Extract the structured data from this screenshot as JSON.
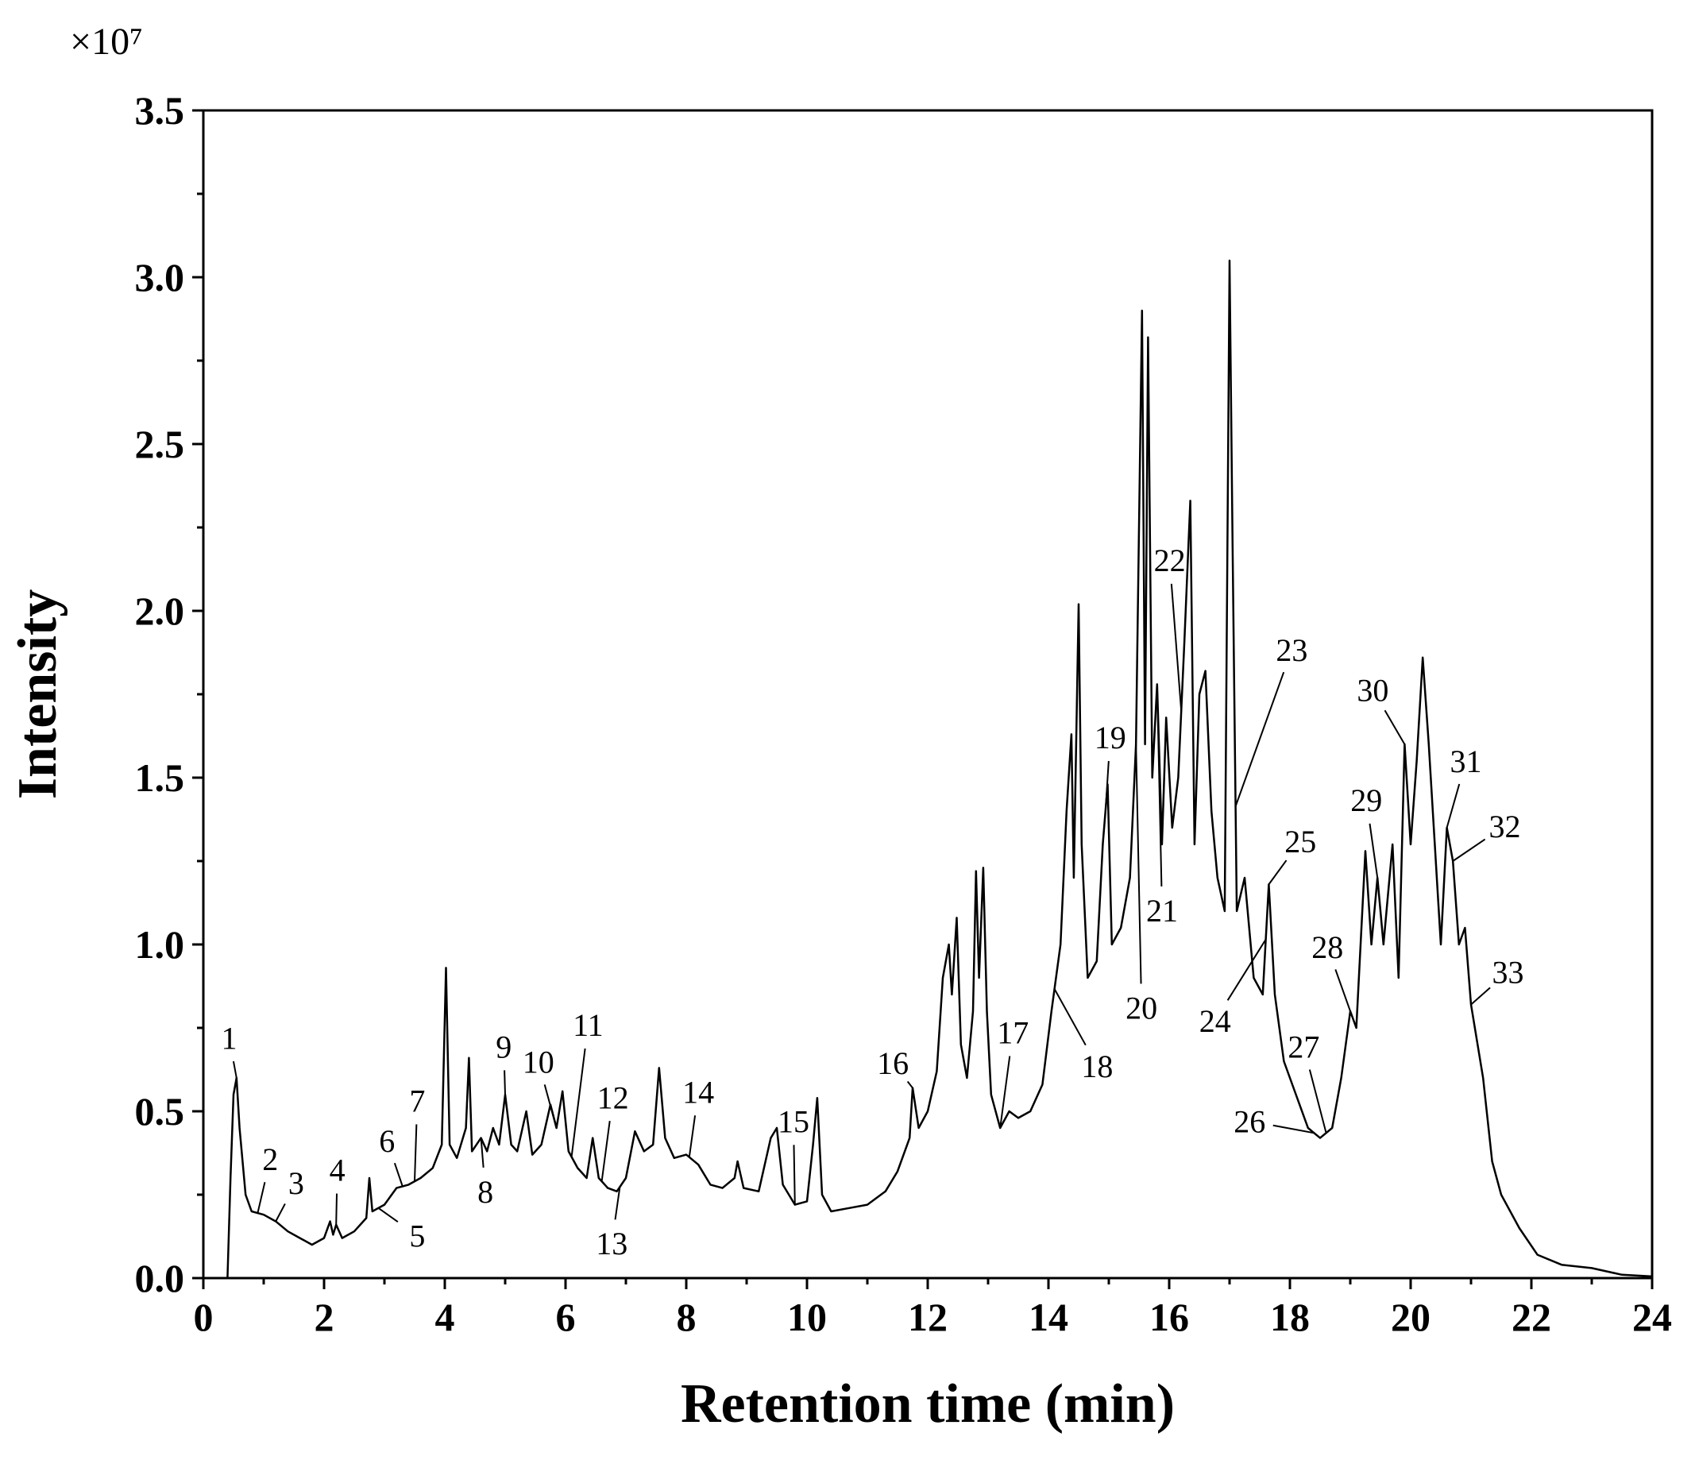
{
  "chart_data": {
    "type": "line",
    "x_label": "Retention time (min)",
    "y_label": "Intensity",
    "y_multiplier": "×10⁷",
    "color": "#000000",
    "xlim": [
      0,
      24
    ],
    "xticks": [
      0,
      2,
      4,
      6,
      8,
      10,
      12,
      14,
      16,
      18,
      20,
      22,
      24
    ],
    "xminor_ticks": [
      1,
      3,
      5,
      7,
      9,
      11,
      13,
      15,
      17,
      19,
      21,
      23
    ],
    "ylim": [
      0,
      3.5
    ],
    "yticks": [
      {
        "value": 0,
        "label": "0.0"
      },
      0.5,
      {
        "value": 1,
        "label": "1.0"
      },
      1.5,
      {
        "value": 2,
        "label": "2.0"
      },
      2.5,
      {
        "value": 3,
        "label": "3.0"
      },
      3.5
    ],
    "yminor_ticks": [
      0.25,
      0.75,
      1.25,
      1.75,
      2.25,
      2.75,
      3.25
    ],
    "x": [
      0,
      0.4,
      0.45,
      0.5,
      0.55,
      0.6,
      0.7,
      0.8,
      1.0,
      1.2,
      1.4,
      1.6,
      1.8,
      2.0,
      2.1,
      2.15,
      2.2,
      2.3,
      2.5,
      2.7,
      2.75,
      2.8,
      3.0,
      3.2,
      3.4,
      3.6,
      3.8,
      3.95,
      4.02,
      4.08,
      4.2,
      4.35,
      4.4,
      4.45,
      4.6,
      4.7,
      4.8,
      4.9,
      5.0,
      5.1,
      5.2,
      5.35,
      5.45,
      5.6,
      5.75,
      5.85,
      5.95,
      6.05,
      6.2,
      6.35,
      6.45,
      6.55,
      6.7,
      6.85,
      7.0,
      7.15,
      7.3,
      7.45,
      7.55,
      7.65,
      7.8,
      8.0,
      8.2,
      8.4,
      8.6,
      8.8,
      8.85,
      8.95,
      9.2,
      9.4,
      9.5,
      9.6,
      9.8,
      10.0,
      10.1,
      10.17,
      10.25,
      10.4,
      10.7,
      11.0,
      11.3,
      11.5,
      11.7,
      11.75,
      11.85,
      12.0,
      12.15,
      12.25,
      12.35,
      12.4,
      12.48,
      12.55,
      12.65,
      12.75,
      12.8,
      12.85,
      12.92,
      12.98,
      13.05,
      13.2,
      13.35,
      13.5,
      13.7,
      13.9,
      14.05,
      14.2,
      14.3,
      14.38,
      14.42,
      14.5,
      14.55,
      14.65,
      14.8,
      14.9,
      14.98,
      15.05,
      15.2,
      15.35,
      15.45,
      15.55,
      15.6,
      15.65,
      15.72,
      15.8,
      15.88,
      15.95,
      16.05,
      16.15,
      16.25,
      16.35,
      16.42,
      16.5,
      16.6,
      16.7,
      16.8,
      16.92,
      17.0,
      17.05,
      17.12,
      17.25,
      17.4,
      17.55,
      17.65,
      17.75,
      17.9,
      18.1,
      18.3,
      18.5,
      18.7,
      18.85,
      19.0,
      19.1,
      19.25,
      19.35,
      19.45,
      19.55,
      19.7,
      19.8,
      19.9,
      20.0,
      20.1,
      20.2,
      20.3,
      20.4,
      20.5,
      20.6,
      20.7,
      20.8,
      20.9,
      21.0,
      21.2,
      21.35,
      21.5,
      21.8,
      22.1,
      22.5,
      23.0,
      23.5,
      24.0
    ],
    "values": [
      0,
      0,
      0.3,
      0.55,
      0.6,
      0.45,
      0.25,
      0.2,
      0.19,
      0.17,
      0.14,
      0.12,
      0.1,
      0.12,
      0.17,
      0.13,
      0.16,
      0.12,
      0.14,
      0.18,
      0.3,
      0.2,
      0.22,
      0.27,
      0.28,
      0.3,
      0.33,
      0.4,
      0.93,
      0.4,
      0.36,
      0.45,
      0.66,
      0.38,
      0.42,
      0.38,
      0.45,
      0.4,
      0.55,
      0.4,
      0.38,
      0.5,
      0.37,
      0.4,
      0.52,
      0.45,
      0.56,
      0.38,
      0.33,
      0.3,
      0.42,
      0.3,
      0.27,
      0.26,
      0.3,
      0.44,
      0.38,
      0.4,
      0.63,
      0.42,
      0.36,
      0.37,
      0.34,
      0.28,
      0.27,
      0.3,
      0.35,
      0.27,
      0.26,
      0.42,
      0.45,
      0.28,
      0.22,
      0.23,
      0.4,
      0.54,
      0.25,
      0.2,
      0.21,
      0.22,
      0.26,
      0.32,
      0.42,
      0.57,
      0.45,
      0.5,
      0.62,
      0.9,
      1.0,
      0.85,
      1.08,
      0.7,
      0.6,
      0.8,
      1.22,
      0.9,
      1.23,
      0.8,
      0.55,
      0.45,
      0.5,
      0.48,
      0.5,
      0.58,
      0.8,
      1.0,
      1.4,
      1.63,
      1.2,
      2.02,
      1.3,
      0.9,
      0.95,
      1.3,
      1.48,
      1.0,
      1.05,
      1.2,
      1.6,
      2.9,
      1.6,
      2.82,
      1.5,
      1.78,
      1.3,
      1.68,
      1.35,
      1.5,
      1.9,
      2.33,
      1.3,
      1.75,
      1.82,
      1.4,
      1.2,
      1.1,
      3.05,
      2.2,
      1.1,
      1.2,
      0.9,
      0.85,
      1.18,
      0.85,
      0.65,
      0.55,
      0.45,
      0.42,
      0.45,
      0.6,
      0.8,
      0.75,
      1.28,
      1.0,
      1.2,
      1.0,
      1.3,
      0.9,
      1.6,
      1.3,
      1.55,
      1.86,
      1.6,
      1.3,
      1.0,
      1.35,
      1.25,
      1.0,
      1.05,
      0.82,
      0.6,
      0.35,
      0.25,
      0.15,
      0.07,
      0.04,
      0.03,
      0.01,
      0.005
    ],
    "peaks": [
      {
        "label": "1",
        "x": 0.55
      },
      {
        "label": "2",
        "x": 0.9
      },
      {
        "label": "3",
        "x": 1.2
      },
      {
        "label": "4",
        "x": 2.2
      },
      {
        "label": "5",
        "x": 2.9
      },
      {
        "label": "6",
        "x": 3.3
      },
      {
        "label": "7",
        "x": 3.5
      },
      {
        "label": "8",
        "x": 4.6
      },
      {
        "label": "9",
        "x": 5.0
      },
      {
        "label": "10",
        "x": 5.85
      },
      {
        "label": "11",
        "x": 6.1
      },
      {
        "label": "12",
        "x": 6.6
      },
      {
        "label": "13",
        "x": 6.9
      },
      {
        "label": "14",
        "x": 8.05
      },
      {
        "label": "15",
        "x": 9.8
      },
      {
        "label": "16",
        "x": 11.75
      },
      {
        "label": "17",
        "x": 13.2
      },
      {
        "label": "18",
        "x": 14.1
      },
      {
        "label": "19",
        "x": 14.95
      },
      {
        "label": "20",
        "x": 15.45
      },
      {
        "label": "21",
        "x": 15.8
      },
      {
        "label": "22",
        "x": 16.2
      },
      {
        "label": "23",
        "x": 17.1
      },
      {
        "label": "24",
        "x": 17.6
      },
      {
        "label": "25",
        "x": 17.65
      },
      {
        "label": "26",
        "x": 18.4
      },
      {
        "label": "27",
        "x": 18.6
      },
      {
        "label": "28",
        "x": 19.0
      },
      {
        "label": "29",
        "x": 19.45
      },
      {
        "label": "30",
        "x": 19.9
      },
      {
        "label": "31",
        "x": 20.6
      },
      {
        "label": "32",
        "x": 20.7
      },
      {
        "label": "33",
        "x": 21.0
      }
    ]
  }
}
